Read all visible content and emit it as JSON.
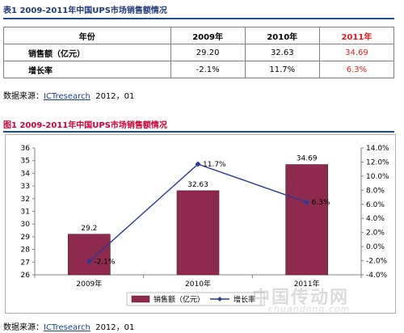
{
  "table_caption": "表1 2009-2011年中国UPS市场销售额情况",
  "table": {
    "headers": [
      "年份",
      "2009年",
      "2010年",
      "2011年"
    ],
    "rows": [
      {
        "label": "销售额（亿元）",
        "values": [
          "29.20",
          "32.63",
          "34.69"
        ]
      },
      {
        "label": "增长率",
        "values": [
          "-2.1%",
          "11.7%",
          "6.3%"
        ]
      }
    ]
  },
  "source_prefix": "数据来源：",
  "source_org": "ICTresearch",
  "source_date": "2012，01",
  "figure_caption": "图1 2009-2011年中国UPS市场销售额情况",
  "colors": {
    "caption_table": "#1f3b78",
    "caption_figure": "#cc0033",
    "bar": "#8e2a4e",
    "line": "#2a3a9a",
    "red_value": "#e41a1c"
  },
  "chart_data": {
    "type": "bar+line",
    "categories": [
      "2009年",
      "2010年",
      "2011年"
    ],
    "series": [
      {
        "name": "销售额（亿元）",
        "type": "bar",
        "axis": "left",
        "values": [
          29.2,
          32.63,
          34.69
        ],
        "labels": [
          "29.2",
          "32.63",
          "34.69"
        ]
      },
      {
        "name": "增长率",
        "type": "line",
        "axis": "right",
        "values": [
          -2.1,
          11.7,
          6.3
        ],
        "labels": [
          "-2.1%",
          "11.7%",
          "6.3%"
        ]
      }
    ],
    "y_left": {
      "min": 26,
      "max": 36,
      "step": 1,
      "ticks": [
        "26",
        "27",
        "28",
        "29",
        "30",
        "31",
        "32",
        "33",
        "34",
        "35",
        "36"
      ]
    },
    "y_right": {
      "min": -4,
      "max": 14,
      "step": 2,
      "ticks": [
        "-4.0%",
        "-2.0%",
        "0.0%",
        "2.0%",
        "4.0%",
        "6.0%",
        "8.0%",
        "10.0%",
        "12.0%",
        "14.0%"
      ]
    },
    "legend_position": "bottom",
    "grid": false
  },
  "watermark": {
    "line1": "中国传动网",
    "line2": "chuandong.com"
  }
}
